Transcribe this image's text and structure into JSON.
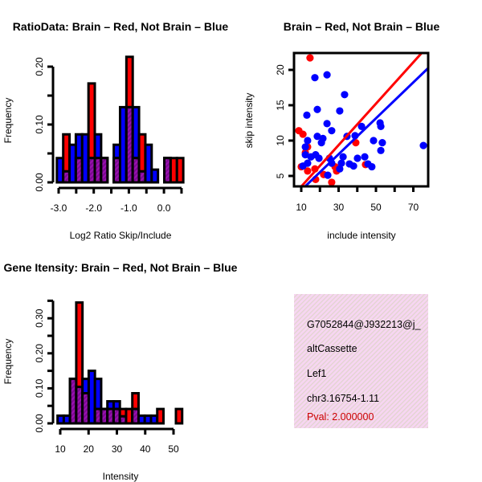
{
  "colors": {
    "red": "#ff0000",
    "blue": "#0000ff",
    "overlap": "#9a10b0",
    "panel_bg": "#f7d6f2",
    "pval": "#cc0000"
  },
  "chart_data": [
    {
      "type": "bar",
      "title": "RatioData: Brain – Red, Not Brain – Blue",
      "xlabel": "Log2 Ratio Skip/Include",
      "ylabel": "Frequency",
      "xlim": [
        -3.05,
        0.55
      ],
      "ylim": [
        0,
        0.22
      ],
      "bin_start": -3.05,
      "bin_width": 0.18,
      "xticks": [
        -3.0,
        -2.5,
        -2.0,
        -1.5,
        -1.0,
        -0.5,
        0.0,
        0.5
      ],
      "xtick_labels": [
        "-3.0",
        "",
        "-2.0",
        "",
        "-1.0",
        "",
        "0.0",
        ""
      ],
      "yticks": [
        0,
        0.05,
        0.1,
        0.15,
        0.2
      ],
      "ytick_labels": [
        "0.00",
        "",
        "0.10",
        "",
        "0.20"
      ],
      "series": [
        {
          "name": "Not Brain",
          "color": "blue",
          "values": [
            0.042,
            0.019,
            0.065,
            0.083,
            0.083,
            0.042,
            0.083,
            0.042,
            0,
            0.065,
            0.13,
            0.13,
            0.13,
            0.019,
            0.065,
            0.022,
            0,
            0.042,
            0,
            0
          ]
        },
        {
          "name": "Brain",
          "color": "red",
          "values": [
            0,
            0.083,
            0,
            0.042,
            0,
            0.171,
            0.042,
            0.042,
            0,
            0.042,
            0,
            0.217,
            0.042,
            0.083,
            0,
            0,
            0,
            0.042,
            0.042,
            0.042
          ]
        }
      ]
    },
    {
      "type": "scatter",
      "title": "Brain – Red, Not Brain – Blue",
      "xlabel": "include intensity",
      "ylabel": "skip intensity",
      "xlim": [
        6.1,
        77.8
      ],
      "ylim": [
        3.5,
        22.4
      ],
      "xticks": [
        10,
        20,
        30,
        40,
        50,
        60,
        70
      ],
      "xtick_labels": [
        "10",
        "",
        "30",
        "",
        "50",
        "",
        "70"
      ],
      "yticks": [
        5,
        10,
        15,
        20
      ],
      "ytick_labels": [
        "5",
        "10",
        "15",
        "20"
      ],
      "series": [
        {
          "name": "Brain",
          "color": "red",
          "fit": {
            "slope": 0.293,
            "intercept": 0.57
          },
          "points": [
            [
              14.7,
              21.7
            ],
            [
              8.7,
              11.4
            ],
            [
              10.9,
              10.9
            ],
            [
              39.2,
              9.7
            ],
            [
              44.4,
              6.6
            ],
            [
              13.4,
              9.1
            ],
            [
              12.2,
              8.3
            ],
            [
              10.0,
              6.3
            ],
            [
              13.4,
              5.7
            ],
            [
              17.7,
              4.5
            ],
            [
              22.0,
              5.2
            ],
            [
              26.3,
              4.1
            ],
            [
              28.1,
              6.3
            ],
            [
              28.9,
              5.7
            ],
            [
              17.3,
              6.0
            ]
          ]
        },
        {
          "name": "Not Brain",
          "color": "blue",
          "fit": {
            "slope": 0.254,
            "intercept": 0.45
          },
          "points": [
            [
              17.3,
              18.9
            ],
            [
              23.8,
              19.3
            ],
            [
              33.2,
              16.5
            ],
            [
              18.6,
              14.4
            ],
            [
              13.0,
              13.6
            ],
            [
              30.6,
              14.2
            ],
            [
              23.8,
              12.4
            ],
            [
              26.3,
              11.4
            ],
            [
              18.6,
              10.6
            ],
            [
              21.6,
              10.3
            ],
            [
              13.4,
              10.0
            ],
            [
              20.8,
              9.7
            ],
            [
              12.2,
              9.1
            ],
            [
              34.5,
              10.6
            ],
            [
              38.8,
              10.7
            ],
            [
              42.3,
              12.0
            ],
            [
              52.2,
              12.5
            ],
            [
              52.6,
              12.0
            ],
            [
              48.7,
              10.0
            ],
            [
              53.4,
              9.7
            ],
            [
              52.6,
              8.6
            ],
            [
              75.4,
              9.3
            ],
            [
              12.2,
              8.0
            ],
            [
              15.2,
              7.7
            ],
            [
              17.7,
              8.0
            ],
            [
              19.5,
              7.5
            ],
            [
              25.1,
              7.5
            ],
            [
              32.4,
              7.7
            ],
            [
              31.5,
              6.8
            ],
            [
              40.1,
              7.5
            ],
            [
              44.0,
              7.7
            ],
            [
              35.8,
              6.7
            ],
            [
              38.0,
              6.4
            ],
            [
              45.7,
              6.7
            ],
            [
              47.8,
              6.3
            ],
            [
              10.9,
              6.4
            ],
            [
              13.4,
              6.8
            ],
            [
              30.6,
              6.0
            ],
            [
              24.2,
              5.1
            ],
            [
              26.3,
              6.8
            ]
          ]
        }
      ]
    },
    {
      "type": "bar",
      "title": "Gene Itensity: Brain – Red, Not Brain – Blue",
      "xlabel": "Intensity",
      "ylabel": "Frequency",
      "xlim": [
        9.05,
        53.05
      ],
      "ylim": [
        0,
        0.36
      ],
      "bin_start": 9.05,
      "bin_width": 2.2,
      "xticks": [
        10,
        20,
        30,
        40,
        50
      ],
      "xtick_labels": [
        "10",
        "20",
        "30",
        "40",
        "50"
      ],
      "yticks": [
        0,
        0.05,
        0.1,
        0.15,
        0.2,
        0.25,
        0.3,
        0.35
      ],
      "ytick_labels": [
        "0.00",
        "",
        "0.10",
        "",
        "0.20",
        "",
        "0.30",
        ""
      ],
      "series": [
        {
          "name": "Not Brain",
          "color": "blue",
          "values": [
            0.022,
            0.022,
            0.127,
            0.104,
            0.127,
            0.15,
            0.127,
            0.041,
            0.063,
            0.063,
            0.02,
            0,
            0.041,
            0.022,
            0.022,
            0.022,
            0,
            0,
            0,
            0
          ]
        },
        {
          "name": "Brain",
          "color": "red",
          "values": [
            0,
            0,
            0.127,
            0.345,
            0.086,
            0,
            0.041,
            0.041,
            0.041,
            0.041,
            0.041,
            0.041,
            0.086,
            0,
            0,
            0,
            0.041,
            0,
            0,
            0.041
          ]
        }
      ]
    }
  ],
  "info_panel": {
    "lines": [
      "G7052844@J932213@j_",
      "altCassette",
      "Lef1",
      "chr3.16754-1.11"
    ],
    "pval": "Pval: 2.000000"
  }
}
